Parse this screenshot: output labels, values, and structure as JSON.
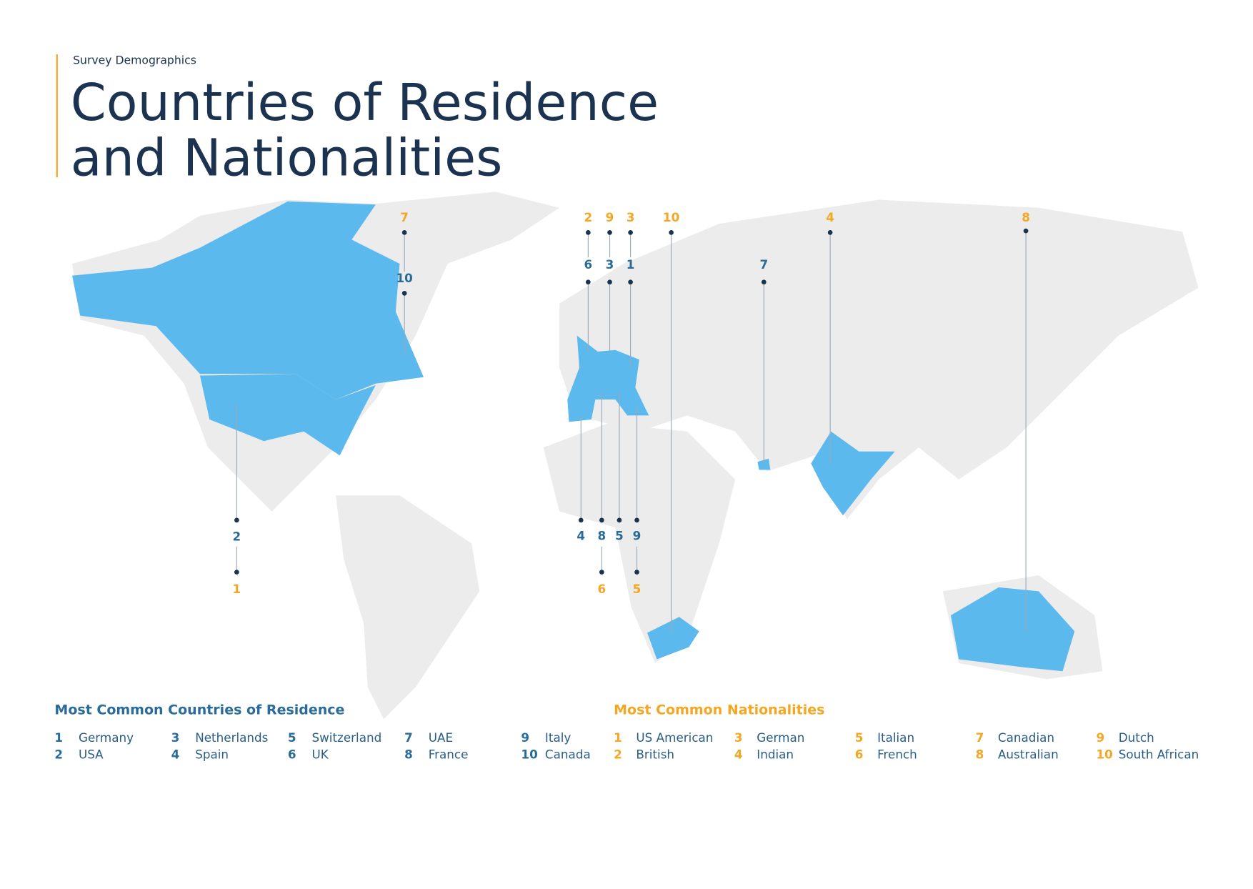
{
  "header": {
    "kicker": "Survey Demographics",
    "title_lines": [
      "Countries of Residence",
      "and Nationalities"
    ]
  },
  "residence": {
    "title": "Most Common Countries of Residence",
    "items": [
      {
        "rank": 1,
        "name": "Germany"
      },
      {
        "rank": 2,
        "name": "USA"
      },
      {
        "rank": 3,
        "name": "Netherlands"
      },
      {
        "rank": 4,
        "name": "Spain"
      },
      {
        "rank": 5,
        "name": "Switzerland"
      },
      {
        "rank": 6,
        "name": "UK"
      },
      {
        "rank": 7,
        "name": "UAE"
      },
      {
        "rank": 8,
        "name": "France"
      },
      {
        "rank": 9,
        "name": "Italy"
      },
      {
        "rank": 10,
        "name": "Canada"
      }
    ]
  },
  "nationalities": {
    "title": "Most Common Nationalities",
    "items": [
      {
        "rank": 1,
        "name": "US American"
      },
      {
        "rank": 2,
        "name": "British"
      },
      {
        "rank": 3,
        "name": "German"
      },
      {
        "rank": 4,
        "name": "Indian"
      },
      {
        "rank": 5,
        "name": "Italian"
      },
      {
        "rank": 6,
        "name": "French"
      },
      {
        "rank": 7,
        "name": "Canadian"
      },
      {
        "rank": 8,
        "name": "Australian"
      },
      {
        "rank": 9,
        "name": "Dutch"
      },
      {
        "rank": 10,
        "name": "South African"
      }
    ]
  }
}
